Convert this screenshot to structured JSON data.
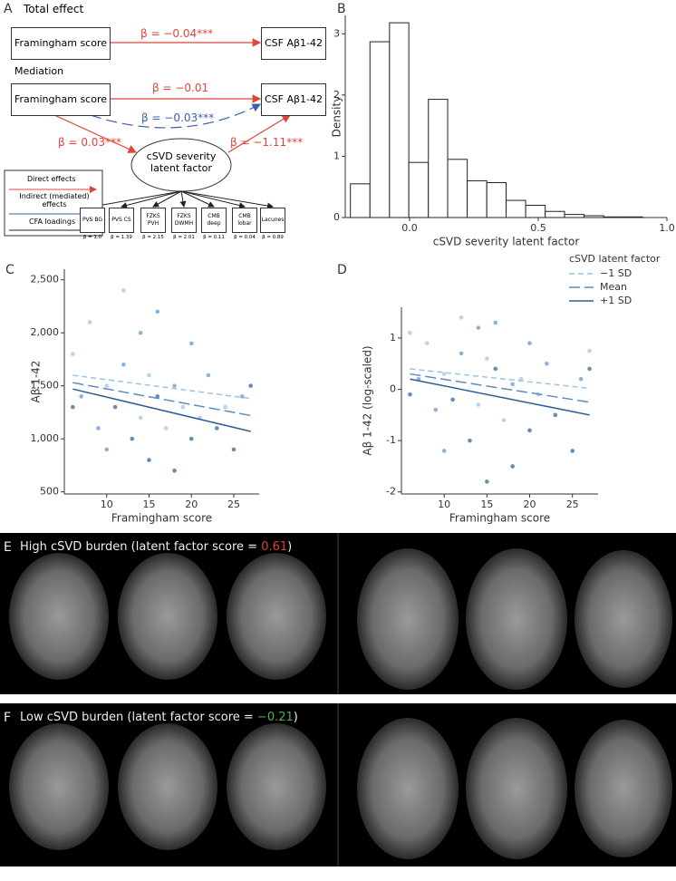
{
  "panel_labels": [
    "A",
    "B",
    "C",
    "D",
    "E",
    "F"
  ],
  "diagram": {
    "total_effect": "Total effect",
    "mediation": "Mediation",
    "exposure": "Framingham score",
    "exposure_2": "Framingham score",
    "outcome": "CSF Aβ1-42",
    "outcome_2": "CSF Aβ1-42",
    "total_beta": "β = −0.04***",
    "direct_beta": "β = −0.01",
    "indirect_beta": "β = −0.03***",
    "a_beta": "β = 0.03***",
    "b_beta": "β = −1.11***",
    "mediator": "cSVD severity latent factor",
    "legend": [
      "Direct effects",
      "Indirect (mediated) effects",
      "CFA loadings"
    ],
    "indicators": [
      {
        "label": "PVS BG",
        "beta": "β = 1.0"
      },
      {
        "label": "PVS CS",
        "beta": "β = 1.39"
      },
      {
        "label": "FZKS PVH",
        "beta": "β = 2.15"
      },
      {
        "label": "FZKS DWMH",
        "beta": "β = 2.01"
      },
      {
        "label": "CMB deep",
        "beta": "β = 0.11"
      },
      {
        "label": "CMB lobar",
        "beta": "β = 0.04"
      },
      {
        "label": "Lacunes",
        "beta": "β = 0.89"
      }
    ]
  },
  "chart_data": [
    {
      "type": "histogram",
      "xlabel": "cSVD severity latent factor",
      "ylabel": "Density",
      "bins": [
        -0.23,
        -0.154,
        -0.078,
        -0.003,
        0.073,
        0.148,
        0.224,
        0.3,
        0.375,
        0.451,
        0.527,
        0.602,
        0.678,
        0.754,
        0.829,
        0.905
      ],
      "values": [
        0.55,
        2.87,
        3.18,
        0.9,
        1.93,
        0.95,
        0.6,
        0.57,
        0.28,
        0.2,
        0.1,
        0.05,
        0.03,
        0.01,
        0.01
      ],
      "color": "#ffffff",
      "xlim": [
        -0.25,
        1.0
      ],
      "xticks": [
        {
          "value": 0,
          "label": "0.0"
        },
        0.5,
        {
          "value": 1,
          "label": "1.0"
        }
      ],
      "ylim": [
        0,
        3.3
      ],
      "yticks": [
        0,
        1,
        2,
        3
      ]
    },
    {
      "type": "scatter",
      "xlabel": "Framingham score",
      "ylabel": "Aβ 1-42",
      "xlim": [
        5,
        28
      ],
      "xticks": [
        10,
        15,
        20,
        25
      ],
      "ylim": [
        480,
        2600
      ],
      "yticks": [
        500,
        {
          "value": 1000,
          "label": "1,000"
        },
        {
          "value": 1500,
          "label": "1,500"
        },
        {
          "value": 2000,
          "label": "2,000"
        },
        {
          "value": 2500,
          "label": "2,500"
        }
      ],
      "points": [
        {
          "color": "#a9c8e8",
          "x": [
            6,
            8,
            10,
            12,
            14,
            15,
            17,
            19,
            21,
            24
          ],
          "y": [
            1800,
            2100,
            1500,
            2400,
            1200,
            1600,
            1100,
            1300,
            1200,
            1300
          ]
        },
        {
          "color": "#6f9fcf",
          "x": [
            7,
            9,
            10,
            12,
            14,
            16,
            18,
            20,
            22,
            26
          ],
          "y": [
            1400,
            1100,
            900,
            1700,
            2000,
            2200,
            1500,
            1900,
            1600,
            1400
          ]
        },
        {
          "color": "#3f6f9f",
          "x": [
            6,
            11,
            13,
            15,
            16,
            18,
            20,
            23,
            25,
            27
          ],
          "y": [
            1300,
            1300,
            1000,
            800,
            1400,
            700,
            1000,
            1100,
            900,
            1500
          ]
        }
      ],
      "series": [
        {
          "color": "#9cc3e6",
          "style": "dashed",
          "x": [
            6,
            27
          ],
          "values": [
            1600,
            1380
          ]
        },
        {
          "color": "#5b8cc4",
          "style": "longdash",
          "x": [
            6,
            27
          ],
          "values": [
            1530,
            1220
          ]
        },
        {
          "color": "#2e5f94",
          "style": "solid",
          "x": [
            6,
            27
          ],
          "values": [
            1470,
            1070
          ]
        }
      ]
    },
    {
      "type": "scatter",
      "xlabel": "Framingham score",
      "ylabel": "Aβ 1-42 (log-scaled)",
      "xlim": [
        5,
        28
      ],
      "xticks": [
        10,
        15,
        20,
        25
      ],
      "ylim": [
        -2.04,
        1.6
      ],
      "yticks": [
        -2,
        -1,
        0,
        1
      ],
      "legend_title": "cSVD latent factor",
      "points": [
        {
          "color": "#a9c8e8",
          "x": [
            6,
            8,
            10,
            12,
            14,
            15,
            17,
            19,
            21,
            27
          ],
          "y": [
            1.1,
            0.9,
            0.3,
            1.4,
            -0.3,
            0.6,
            -0.6,
            0.2,
            -0.1,
            0.75
          ]
        },
        {
          "color": "#6f9fcf",
          "x": [
            7,
            9,
            10,
            12,
            14,
            16,
            18,
            20,
            22,
            26
          ],
          "y": [
            0.2,
            -0.4,
            -1.2,
            0.7,
            1.2,
            1.3,
            0.1,
            0.9,
            0.5,
            0.2
          ]
        },
        {
          "color": "#3f6f9f",
          "x": [
            6,
            11,
            13,
            15,
            16,
            18,
            20,
            23,
            25,
            27
          ],
          "y": [
            -0.1,
            -0.2,
            -1.0,
            -1.8,
            0.4,
            -1.5,
            -0.8,
            -0.5,
            -1.2,
            0.4
          ]
        }
      ],
      "series": [
        {
          "name": "−1 SD",
          "color": "#9cc3e6",
          "style": "dashed",
          "x": [
            6,
            27
          ],
          "values": [
            0.4,
            0.02
          ]
        },
        {
          "name": "Mean",
          "color": "#5b8cc4",
          "style": "longdash",
          "x": [
            6,
            27
          ],
          "values": [
            0.3,
            -0.25
          ]
        },
        {
          "name": "+1 SD",
          "color": "#2e5f94",
          "style": "solid",
          "x": [
            6,
            27
          ],
          "values": [
            0.2,
            -0.5
          ]
        }
      ]
    }
  ],
  "images": {
    "high": {
      "prefix": "High cSVD burden (latent factor score = ",
      "score": "0.61",
      "suffix": ")",
      "score_color": "#e0443a"
    },
    "low": {
      "prefix": "Low cSVD burden (latent factor score = ",
      "score": "−0.21",
      "suffix": ")",
      "score_color": "#4caf50"
    }
  }
}
